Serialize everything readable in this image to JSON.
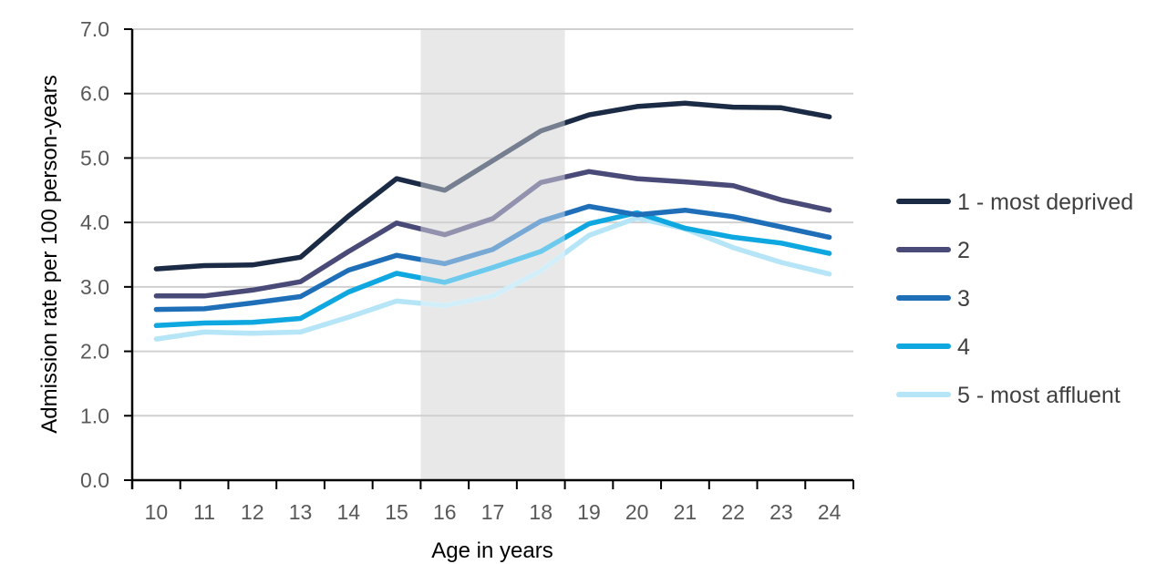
{
  "chart_data": {
    "type": "line",
    "xlabel": "Age in years",
    "ylabel": "Admission rate per 100 person-years",
    "x": [
      10,
      11,
      12,
      13,
      14,
      15,
      16,
      17,
      18,
      19,
      20,
      21,
      22,
      23,
      24
    ],
    "ylim": [
      0,
      7
    ],
    "yticks": [
      "0.0",
      "1.0",
      "2.0",
      "3.0",
      "4.0",
      "5.0",
      "6.0",
      "7.0"
    ],
    "grid": true,
    "legend_position": "right",
    "shaded_band": {
      "from_age": 15.5,
      "to_age": 18.5,
      "color": "#e8e8e8"
    },
    "series": [
      {
        "name": "1 - most deprived",
        "color": "#1c2b45",
        "values": [
          3.28,
          3.33,
          3.34,
          3.46,
          4.1,
          4.68,
          4.5,
          4.96,
          5.42,
          5.67,
          5.8,
          5.85,
          5.79,
          5.78,
          5.64
        ]
      },
      {
        "name": "2",
        "color": "#4a4a78",
        "values": [
          2.86,
          2.86,
          2.95,
          3.08,
          3.55,
          3.99,
          3.81,
          4.06,
          4.62,
          4.79,
          4.68,
          4.63,
          4.57,
          4.35,
          4.19
        ]
      },
      {
        "name": "3",
        "color": "#1f6fb8",
        "values": [
          2.65,
          2.66,
          2.75,
          2.85,
          3.26,
          3.49,
          3.36,
          3.58,
          4.02,
          4.25,
          4.12,
          4.19,
          4.09,
          3.93,
          3.77
        ]
      },
      {
        "name": "4",
        "color": "#0ea7df",
        "values": [
          2.4,
          2.44,
          2.45,
          2.51,
          2.92,
          3.21,
          3.07,
          3.3,
          3.55,
          3.98,
          4.15,
          3.91,
          3.77,
          3.68,
          3.52
        ]
      },
      {
        "name": "5 - most affluent",
        "color": "#b5e5f6",
        "values": [
          2.19,
          2.3,
          2.28,
          2.3,
          2.53,
          2.78,
          2.71,
          2.86,
          3.25,
          3.8,
          4.07,
          3.9,
          3.61,
          3.38,
          3.2
        ]
      }
    ]
  }
}
